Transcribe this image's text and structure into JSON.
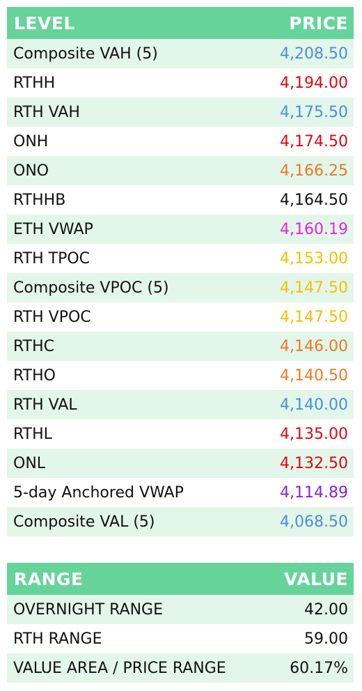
{
  "levels": {
    "header": {
      "level": "LEVEL",
      "price": "PRICE"
    },
    "rows": [
      {
        "label": "Composite VAH (5)",
        "price": "4,208.50",
        "color": "#4a8fe0"
      },
      {
        "label": "RTHH",
        "price": "4,194.00",
        "color": "#e30613"
      },
      {
        "label": "RTH VAH",
        "price": "4,175.50",
        "color": "#4a8fe0"
      },
      {
        "label": "ONH",
        "price": "4,174.50",
        "color": "#e30613"
      },
      {
        "label": "ONO",
        "price": "4,166.25",
        "color": "#f07820"
      },
      {
        "label": "RTHHB",
        "price": "4,164.50",
        "color": "#111111"
      },
      {
        "label": "ETH VWAP",
        "price": "4,160.19",
        "color": "#f020e0"
      },
      {
        "label": "RTH TPOC",
        "price": "4,153.00",
        "color": "#f5c000"
      },
      {
        "label": "Composite VPOC (5)",
        "price": "4,147.50",
        "color": "#f5c000"
      },
      {
        "label": "RTH VPOC",
        "price": "4,147.50",
        "color": "#f5c000"
      },
      {
        "label": "RTHC",
        "price": "4,146.00",
        "color": "#f07820"
      },
      {
        "label": "RTHO",
        "price": "4,140.50",
        "color": "#f07820"
      },
      {
        "label": "RTH VAL",
        "price": "4,140.00",
        "color": "#4a8fe0"
      },
      {
        "label": "RTHL",
        "price": "4,135.00",
        "color": "#e30613"
      },
      {
        "label": "ONL",
        "price": "4,132.50",
        "color": "#e30613"
      },
      {
        "label": "5-day Anchored VWAP",
        "price": "4,114.89",
        "color": "#8a20e0"
      },
      {
        "label": "Composite VAL (5)",
        "price": "4,068.50",
        "color": "#4a8fe0"
      }
    ]
  },
  "ranges": {
    "header": {
      "range": "RANGE",
      "value": "VALUE"
    },
    "rows": [
      {
        "label": "OVERNIGHT RANGE",
        "value": "42.00"
      },
      {
        "label": "RTH RANGE",
        "value": "59.00"
      },
      {
        "label": "VALUE AREA / PRICE RANGE",
        "value": "60.17%"
      }
    ]
  },
  "colors": {
    "header_bg": "#66d49a",
    "stripe_bg": "#e3f6ea"
  }
}
